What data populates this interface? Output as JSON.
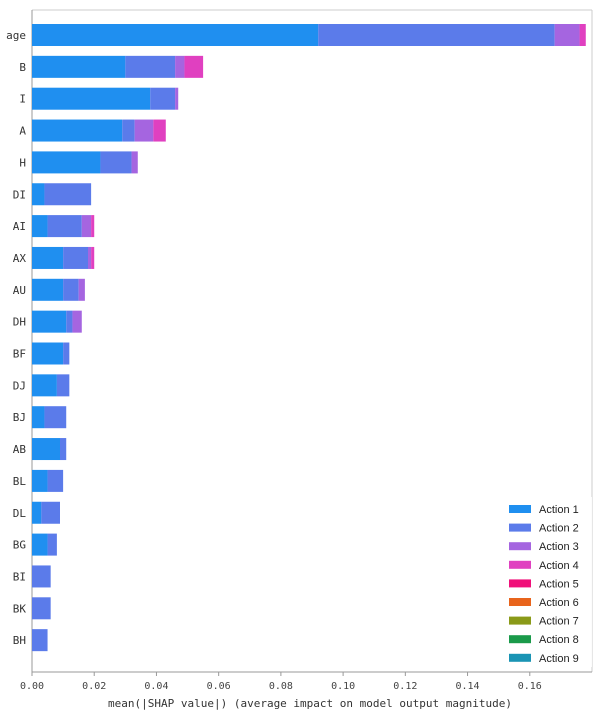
{
  "chart_data": {
    "type": "bar",
    "orientation": "horizontal",
    "stacked": true,
    "title": "",
    "xlabel": "mean(|SHAP value|) (average impact on model output magnitude)",
    "ylabel": "",
    "xlim": [
      0,
      0.18
    ],
    "xticks": [
      "0.00",
      "0.02",
      "0.04",
      "0.06",
      "0.08",
      "0.10",
      "0.12",
      "0.14",
      "0.16"
    ],
    "xtick_values": [
      0,
      0.02,
      0.04,
      0.06,
      0.08,
      0.1,
      0.12,
      0.14,
      0.16
    ],
    "legend_position": "bottom-right",
    "grid": false,
    "categories": [
      "age",
      "B",
      "I",
      "A",
      "H",
      "DI",
      "AI",
      "AX",
      "AU",
      "DH",
      "BF",
      "DJ",
      "BJ",
      "AB",
      "BL",
      "DL",
      "BG",
      "BI",
      "BK",
      "BH"
    ],
    "series": [
      {
        "name": "Action 1",
        "color": "#1f8ff0",
        "values": [
          0.092,
          0.03,
          0.038,
          0.029,
          0.022,
          0.004,
          0.005,
          0.01,
          0.01,
          0.011,
          0.01,
          0.008,
          0.004,
          0.009,
          0.005,
          0.003,
          0.005,
          0.0,
          0.0,
          0.0
        ]
      },
      {
        "name": "Action 2",
        "color": "#5b7bea",
        "values": [
          0.076,
          0.016,
          0.008,
          0.004,
          0.01,
          0.015,
          0.011,
          0.008,
          0.005,
          0.002,
          0.002,
          0.004,
          0.007,
          0.002,
          0.005,
          0.006,
          0.003,
          0.006,
          0.006,
          0.005
        ]
      },
      {
        "name": "Action 3",
        "color": "#a565e0",
        "values": [
          0.008,
          0.003,
          0.001,
          0.006,
          0.002,
          0.0,
          0.003,
          0.001,
          0.002,
          0.003,
          0.0,
          0.0,
          0.0,
          0.0,
          0.0,
          0.0,
          0.0,
          0.0,
          0.0,
          0.0
        ]
      },
      {
        "name": "Action 4",
        "color": "#e040c0",
        "values": [
          0.002,
          0.006,
          0.0,
          0.004,
          0.0,
          0.0,
          0.001,
          0.001,
          0.0,
          0.0,
          0.0,
          0.0,
          0.0,
          0.0,
          0.0,
          0.0,
          0.0,
          0.0,
          0.0,
          0.0
        ]
      },
      {
        "name": "Action 5",
        "color": "#f0107a",
        "values": [
          0,
          0,
          0,
          0,
          0,
          0,
          0,
          0,
          0,
          0,
          0,
          0,
          0,
          0,
          0,
          0,
          0,
          0,
          0,
          0
        ]
      },
      {
        "name": "Action 6",
        "color": "#e8641c",
        "values": [
          0,
          0,
          0,
          0,
          0,
          0,
          0,
          0,
          0,
          0,
          0,
          0,
          0,
          0,
          0,
          0,
          0,
          0,
          0,
          0
        ]
      },
      {
        "name": "Action 7",
        "color": "#8a9a18",
        "values": [
          0,
          0,
          0,
          0,
          0,
          0,
          0,
          0,
          0,
          0,
          0,
          0,
          0,
          0,
          0,
          0,
          0,
          0,
          0,
          0
        ]
      },
      {
        "name": "Action 8",
        "color": "#1a9a4a",
        "values": [
          0,
          0,
          0,
          0,
          0,
          0,
          0,
          0,
          0,
          0,
          0,
          0,
          0,
          0,
          0,
          0,
          0,
          0,
          0,
          0
        ]
      },
      {
        "name": "Action 9",
        "color": "#1a94b4",
        "values": [
          0,
          0,
          0,
          0,
          0,
          0,
          0,
          0,
          0,
          0,
          0,
          0,
          0,
          0,
          0,
          0,
          0,
          0,
          0,
          0
        ]
      }
    ]
  }
}
